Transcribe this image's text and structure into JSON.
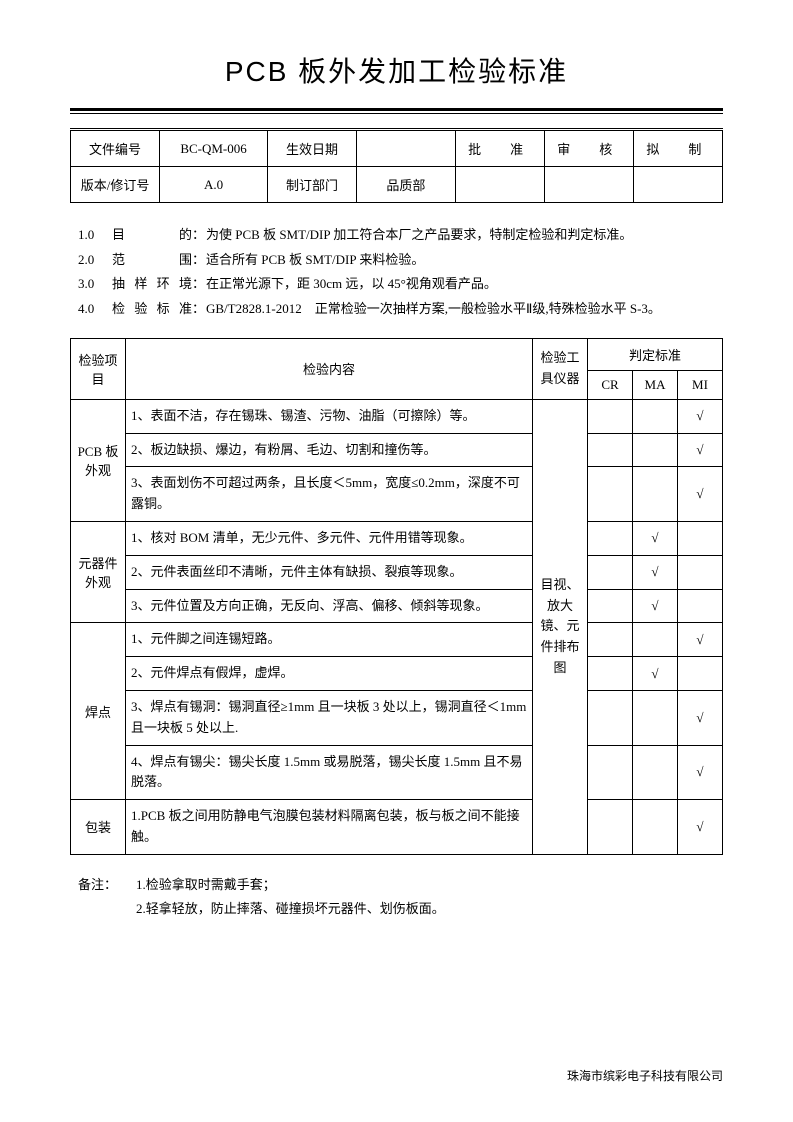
{
  "title": "PCB 板外发加工检验标准",
  "header": {
    "r1c1_label": "文件编号",
    "r1c2": "BC-QM-006",
    "r1c3_label": "生效日期",
    "r1c4": "",
    "r1c5_label": "批　准",
    "r1c6_label": "审　核",
    "r1c7_label": "拟　制",
    "r2c1_label": "版本/修订号",
    "r2c2": "A.0",
    "r2c3_label": "制订部门",
    "r2c4": "品质部",
    "r2c5": "",
    "r2c6": "",
    "r2c7": ""
  },
  "intro": [
    {
      "num": "1.0",
      "label": "目　　的",
      "text": "为使 PCB 板 SMT/DIP 加工符合本厂之产品要求，特制定检验和判定标准。"
    },
    {
      "num": "2.0",
      "label": "范　　围",
      "text": "适合所有 PCB 板 SMT/DIP 来料检验。"
    },
    {
      "num": "3.0",
      "label": "抽样环境",
      "text": "在正常光源下，距 30cm 远，以 45°视角观看产品。"
    },
    {
      "num": "4.0",
      "label": "检验标准",
      "text": "GB/T2828.1-2012　正常检验一次抽样方案,一般检验水平Ⅱ级,特殊检验水平 S-3。"
    }
  ],
  "table": {
    "head": {
      "item": "检验项目",
      "content": "检验内容",
      "tool": "检验工具仪器",
      "std": "判定标准",
      "cr": "CR",
      "ma": "MA",
      "mi": "MI"
    },
    "tool_merged": "目视、放大镜、元件排布图",
    "groups": [
      {
        "item": "PCB 板外观",
        "rows": [
          {
            "content": "1、表面不洁，存在锡珠、锡渣、污物、油脂（可擦除）等。",
            "cr": "",
            "ma": "",
            "mi": "√"
          },
          {
            "content": "2、板边缺损、爆边，有粉屑、毛边、切割和撞伤等。",
            "cr": "",
            "ma": "",
            "mi": "√"
          },
          {
            "content": "3、表面划伤不可超过两条，且长度＜5mm，宽度≤0.2mm，深度不可露铜。",
            "cr": "",
            "ma": "",
            "mi": "√"
          }
        ]
      },
      {
        "item": "元器件外观",
        "rows": [
          {
            "content": "1、核对 BOM 清单，无少元件、多元件、元件用错等现象。",
            "cr": "",
            "ma": "√",
            "mi": ""
          },
          {
            "content": "2、元件表面丝印不清晰，元件主体有缺损、裂痕等现象。",
            "cr": "",
            "ma": "√",
            "mi": ""
          },
          {
            "content": "3、元件位置及方向正确，无反向、浮高、偏移、倾斜等现象。",
            "cr": "",
            "ma": "√",
            "mi": ""
          }
        ]
      },
      {
        "item": "焊点",
        "rows": [
          {
            "content": "1、元件脚之间连锡短路。",
            "cr": "",
            "ma": "",
            "mi": "√"
          },
          {
            "content": "2、元件焊点有假焊，虚焊。",
            "cr": "",
            "ma": "√",
            "mi": ""
          },
          {
            "content": "3、焊点有锡洞：锡洞直径≥1mm 且一块板 3 处以上，锡洞直径＜1mm 且一块板 5 处以上.",
            "cr": "",
            "ma": "",
            "mi": "√"
          },
          {
            "content": "4、焊点有锡尖：锡尖长度 1.5mm 或易脱落，锡尖长度 1.5mm 且不易脱落。",
            "cr": "",
            "ma": "",
            "mi": "√"
          }
        ]
      },
      {
        "item": "包装",
        "rows": [
          {
            "content": "1.PCB 板之间用防静电气泡膜包装材料隔离包装，板与板之间不能接触。",
            "cr": "",
            "ma": "",
            "mi": "√"
          }
        ]
      }
    ]
  },
  "notes": {
    "label": "备注：",
    "lines": [
      "1.检验拿取时需戴手套；",
      "2.轻拿轻放，防止摔落、碰撞损坏元器件、划伤板面。"
    ]
  },
  "footer": "珠海市缤彩电子科技有限公司"
}
